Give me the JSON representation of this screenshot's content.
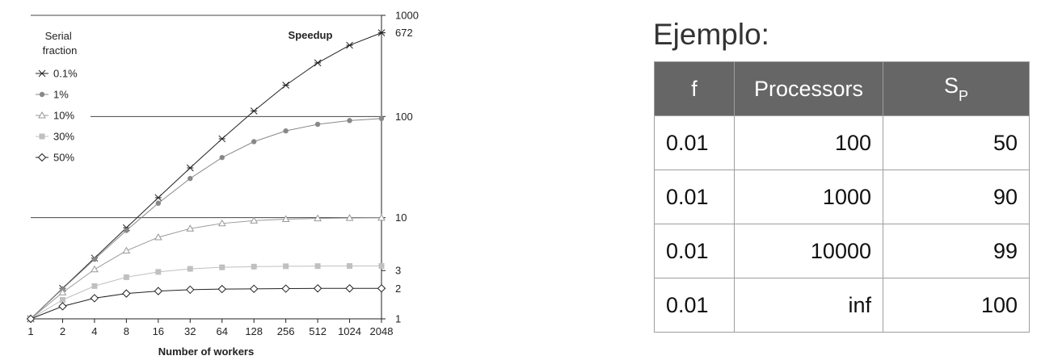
{
  "chart_data": {
    "type": "line",
    "title": "Speedup",
    "xlabel": "Number of workers",
    "ylabel": "",
    "x_scale": "log2",
    "y_scale": "log10",
    "x": [
      1,
      2,
      4,
      8,
      16,
      32,
      64,
      128,
      256,
      512,
      1024,
      2048
    ],
    "x_tick_labels": [
      "1",
      "2",
      "4",
      "8",
      "16",
      "32",
      "64",
      "128",
      "256",
      "512",
      "1024",
      "2048"
    ],
    "y_tick_labels": [
      "1",
      "2",
      "3",
      "10",
      "100",
      "672",
      "1000"
    ],
    "y_ticks": [
      1,
      2,
      3,
      10,
      100,
      672,
      1000
    ],
    "ylim": [
      1,
      1000
    ],
    "legend_title": "Serial fraction",
    "legend_position": "top-left",
    "grid_lines_at": [
      10,
      100,
      1000
    ],
    "series": [
      {
        "name": "0.1%",
        "marker": "asterisk",
        "color": "#222222",
        "values": [
          1,
          2.0,
          3.99,
          7.94,
          15.76,
          31.04,
          60.2,
          113.4,
          204.0,
          338.8,
          506.2,
          672
        ]
      },
      {
        "name": "1%",
        "marker": "circle",
        "color": "#888888",
        "values": [
          1,
          1.98,
          3.88,
          7.48,
          13.9,
          24.4,
          39.3,
          56.4,
          72.1,
          83.8,
          91.2,
          95.4
        ]
      },
      {
        "name": "10%",
        "marker": "triangle",
        "color": "#999999",
        "values": [
          1,
          1.82,
          3.08,
          4.71,
          6.4,
          7.8,
          8.77,
          9.34,
          9.66,
          9.82,
          9.91,
          9.96
        ]
      },
      {
        "name": "30%",
        "marker": "square",
        "color": "#c0c0c0",
        "values": [
          1,
          1.54,
          2.11,
          2.58,
          2.91,
          3.12,
          3.23,
          3.28,
          3.31,
          3.32,
          3.33,
          3.33
        ]
      },
      {
        "name": "50%",
        "marker": "diamond",
        "color": "#222222",
        "values": [
          1,
          1.33,
          1.6,
          1.78,
          1.88,
          1.94,
          1.97,
          1.98,
          1.99,
          2.0,
          2.0,
          2.0
        ]
      }
    ]
  },
  "example": {
    "title": "Ejemplo:",
    "headers": {
      "f": "f",
      "processors": "Processors",
      "sp_main": "S",
      "sp_sub": "P"
    },
    "rows": [
      {
        "f": "0.01",
        "processors": "100",
        "sp": "50"
      },
      {
        "f": "0.01",
        "processors": "1000",
        "sp": "90"
      },
      {
        "f": "0.01",
        "processors": "10000",
        "sp": "99"
      },
      {
        "f": "0.01",
        "processors": "inf",
        "sp": "100"
      }
    ]
  }
}
